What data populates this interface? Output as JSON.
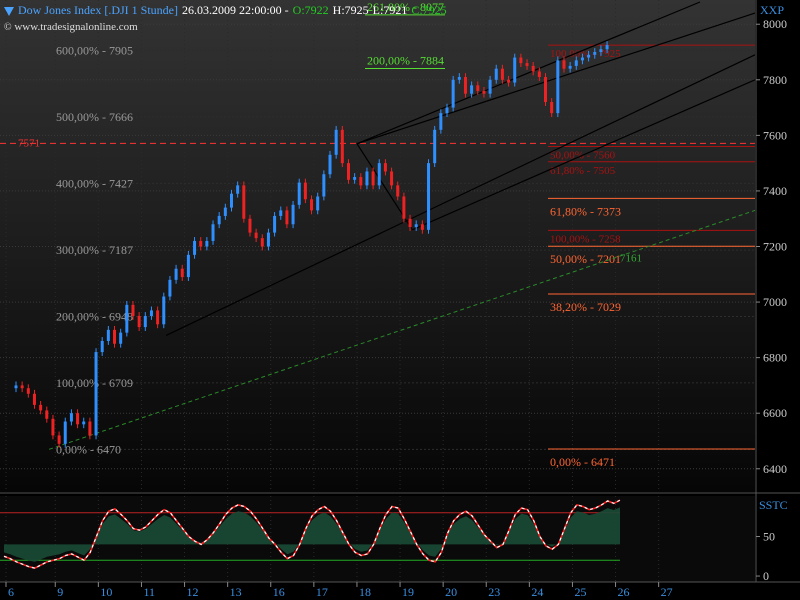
{
  "header": {
    "title": "Dow Jones Index [.DJI  1 Stunde]",
    "datetime": "26.03.2009 22:00:00 -",
    "open": "O:7922",
    "high": "H:7925",
    "low": "L:7921",
    "close": "C:7925",
    "colors": {
      "title": "#4aa3ff",
      "datetime": "#ffffff",
      "open": "#22cc22",
      "high": "#ffffff",
      "low": "#ffffff",
      "close": "#22cc22"
    }
  },
  "watermark": {
    "copyright": "©",
    "url": "www.tradesignalonline.com"
  },
  "panels": {
    "price_label": "XXP",
    "osc_label": "SSTC"
  },
  "chart_data": [
    {
      "type": "candlestick",
      "title": "Dow Jones Index [.DJI  1 Stunde]",
      "ylim": [
        6320,
        8080
      ],
      "y_ticks": [
        6400,
        6600,
        6800,
        7000,
        7200,
        7400,
        7600,
        7800,
        8000
      ],
      "x_ticks": [
        {
          "label": "6",
          "i": 0
        },
        {
          "label": "9",
          "i": 8
        },
        {
          "label": "10",
          "i": 15
        },
        {
          "label": "11",
          "i": 22
        },
        {
          "label": "12",
          "i": 29
        },
        {
          "label": "13",
          "i": 36
        },
        {
          "label": "16",
          "i": 43
        },
        {
          "label": "17",
          "i": 50
        },
        {
          "label": "18",
          "i": 57
        },
        {
          "label": "19",
          "i": 64
        },
        {
          "label": "20",
          "i": 71
        },
        {
          "label": "23",
          "i": 78
        },
        {
          "label": "24",
          "i": 85
        },
        {
          "label": "25",
          "i": 92
        },
        {
          "label": "26",
          "i": 99
        },
        {
          "label": "27",
          "i": 106
        }
      ],
      "x_domain_bars": 121,
      "up_color": "#2f8fff",
      "down_color": "#ee2222",
      "close_series": [
        6700,
        6690,
        6670,
        6630,
        6610,
        6580,
        6520,
        6490,
        6570,
        6600,
        6560,
        6570,
        6520,
        6820,
        6860,
        6900,
        6850,
        6890,
        6990,
        6950,
        6910,
        6950,
        6970,
        6920,
        7020,
        7080,
        7120,
        7090,
        7170,
        7220,
        7200,
        7220,
        7280,
        7310,
        7340,
        7390,
        7420,
        7300,
        7250,
        7230,
        7200,
        7250,
        7310,
        7330,
        7280,
        7350,
        7430,
        7370,
        7330,
        7380,
        7460,
        7530,
        7620,
        7500,
        7440,
        7450,
        7420,
        7470,
        7420,
        7500,
        7470,
        7420,
        7380,
        7300,
        7270,
        7280,
        7260,
        7500,
        7620,
        7680,
        7700,
        7800,
        7810,
        7750,
        7780,
        7760,
        7750,
        7800,
        7840,
        7800,
        7790,
        7880,
        7860,
        7850,
        7830,
        7810,
        7720,
        7680,
        7870,
        7840,
        7850,
        7870,
        7880,
        7890,
        7900,
        7910,
        7925
      ],
      "fib_left": {
        "color": "#999999",
        "levels": [
          {
            "label": "0,00% - 6470",
            "value": 6470
          },
          {
            "label": "100,00% - 6709",
            "value": 6709
          },
          {
            "label": "200,00% - 6948",
            "value": 6948
          },
          {
            "label": "300,00% - 7187",
            "value": 7187
          },
          {
            "label": "400,00% - 7427",
            "value": 7427
          },
          {
            "label": "500,00% - 7666",
            "value": 7666
          },
          {
            "label": "600,00% - 7905",
            "value": 7905
          }
        ]
      },
      "fib_top": {
        "color": "#55dd33",
        "levels": [
          {
            "label": "261,80% - 8077",
            "value": 8077
          },
          {
            "label": "200,00% - 7884",
            "value": 7884
          }
        ]
      },
      "fib_right": {
        "color": "#ff6633",
        "levels": [
          {
            "label": "61,80% - 7373",
            "value": 7373
          },
          {
            "label": "50,00% - 7201",
            "value": 7201
          },
          {
            "label": "38,20% - 7029",
            "value": 7029
          },
          {
            "label": "0,00% - 6471",
            "value": 6471
          }
        ]
      },
      "fib_right_dark": {
        "color": "#aa1111",
        "levels": [
          {
            "label": "100,00% - 7925",
            "value": 7925
          },
          {
            "label": "50,00% - 7560",
            "value": 7560
          },
          {
            "label": "61,80% - 7505",
            "value": 7505
          },
          {
            "label": "100,00% - 7258",
            "value": 7258
          }
        ]
      },
      "marker_left": {
        "label": "7571",
        "value": 7571,
        "color": "#ff3333"
      },
      "trend_label": {
        "label": "7161",
        "value": 7161,
        "color": "#33aa33"
      }
    },
    {
      "type": "line",
      "name": "SSTC",
      "ylim": [
        -5,
        100
      ],
      "y_ticks": [
        0,
        50
      ],
      "bands": [
        80,
        20
      ],
      "values": [
        25,
        22,
        18,
        15,
        12,
        10,
        14,
        18,
        20,
        22,
        26,
        28,
        24,
        20,
        30,
        50,
        70,
        82,
        85,
        78,
        70,
        60,
        58,
        62,
        70,
        78,
        84,
        80,
        70,
        60,
        50,
        44,
        40,
        46,
        55,
        66,
        78,
        86,
        90,
        88,
        82,
        72,
        60,
        48,
        40,
        30,
        22,
        26,
        40,
        60,
        76,
        84,
        88,
        82,
        70,
        55,
        40,
        30,
        26,
        28,
        40,
        60,
        78,
        88,
        86,
        72,
        56,
        40,
        28,
        20,
        18,
        30,
        54,
        70,
        78,
        82,
        76,
        64,
        52,
        44,
        36,
        40,
        58,
        78,
        86,
        84,
        70,
        50,
        38,
        34,
        40,
        60,
        80,
        90,
        88,
        84,
        86,
        90,
        95,
        92,
        96
      ]
    }
  ]
}
